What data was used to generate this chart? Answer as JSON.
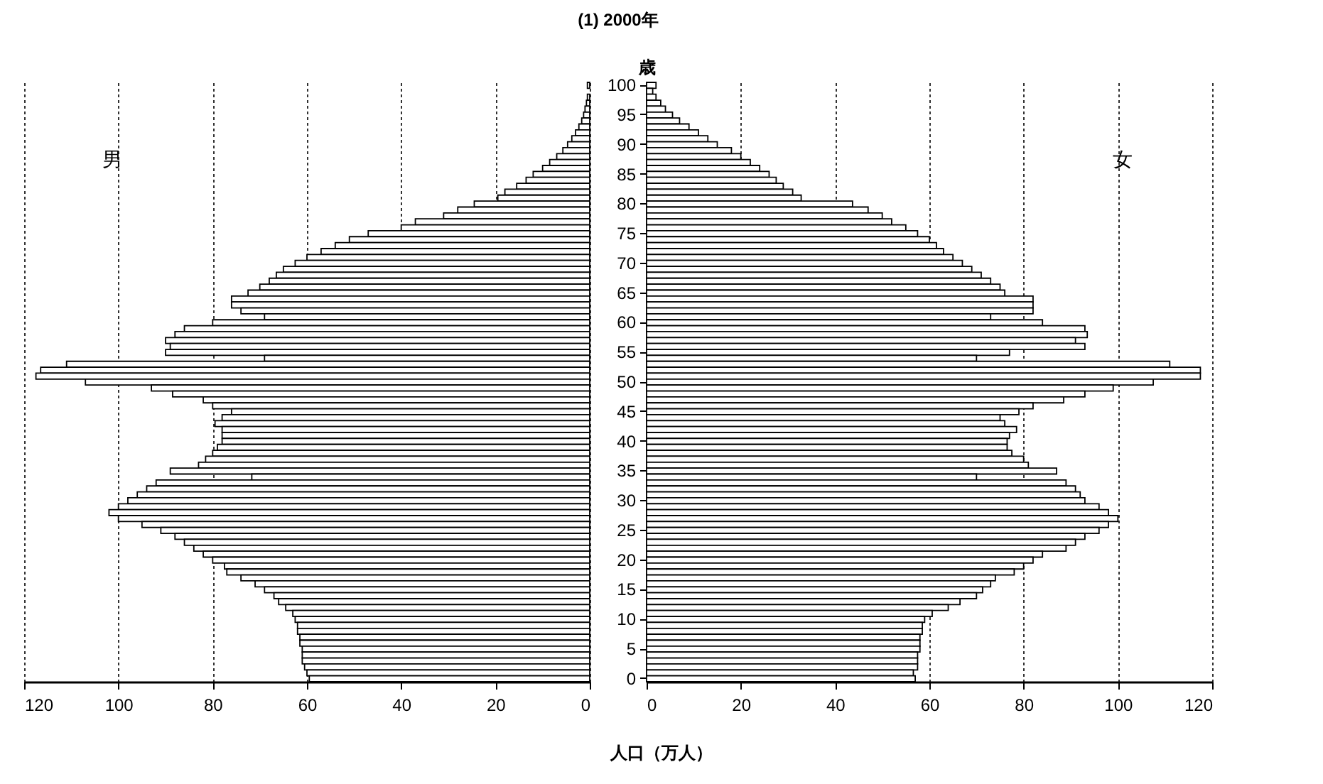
{
  "chart_data": [
    {
      "type": "bar",
      "orientation": "horizontal",
      "xlabel": "人口（万人）",
      "xlim": [
        120,
        0
      ],
      "xticks": [
        120,
        100,
        80,
        60,
        40,
        20,
        0
      ],
      "grid": "x",
      "tick_labels": "x",
      "categories": [
        "100",
        null,
        null,
        null,
        null,
        "95",
        null,
        null,
        null,
        null,
        "90",
        null,
        null,
        null,
        null,
        "85",
        null,
        null,
        null,
        null,
        "80",
        null,
        null,
        null,
        null,
        "75",
        null,
        null,
        null,
        null,
        "70",
        null,
        null,
        null,
        null,
        "65",
        null,
        null,
        null,
        null,
        "60",
        null,
        null,
        null,
        null,
        "55",
        null,
        null,
        null,
        null,
        "50",
        null,
        null,
        null,
        null,
        "45",
        null,
        null,
        null,
        null,
        "40",
        null,
        null,
        null,
        null,
        "35",
        null,
        null,
        null,
        null,
        "30",
        null,
        null,
        null,
        null,
        "25",
        null,
        null,
        null,
        null,
        "20",
        null,
        null,
        null,
        null,
        "15",
        null,
        null,
        null,
        null,
        "10",
        null,
        null,
        null,
        null,
        "5",
        null,
        null,
        null,
        null,
        "0"
      ],
      "series": [
        {
          "name": "男",
          "color": "#000000",
          "values": [
            0.5,
            null,
            0.5,
            0.7,
            1,
            1.3,
            1.7,
            2.3,
            3,
            3.8,
            4.7,
            5.7,
            7,
            8.5,
            10,
            12,
            13.5,
            15.5,
            18,
            19.5,
            24.5,
            28,
            31,
            37,
            40,
            47,
            51,
            54,
            57,
            60,
            62.5,
            65,
            66.5,
            68,
            70,
            72.5,
            76,
            76,
            74,
            69,
            80,
            86,
            88,
            90,
            89,
            90,
            69,
            111,
            116.5,
            117.5,
            107,
            93,
            88.5,
            82,
            80,
            76,
            78,
            79.5,
            78,
            78,
            78,
            79,
            80,
            81.5,
            83,
            89,
            71.7,
            92,
            94,
            96,
            98,
            100,
            102,
            100,
            95,
            91,
            88,
            86,
            84,
            82,
            80,
            77.5,
            77,
            74,
            71,
            69,
            67,
            66,
            64.5,
            63,
            62.5,
            62,
            62,
            61.5,
            61.5,
            61,
            61,
            61,
            60.5,
            60,
            59.5
          ]
        }
      ]
    },
    {
      "type": "bar",
      "orientation": "horizontal",
      "title": "(1) 2000年",
      "ylabel": "歳",
      "xlim": [
        0,
        120
      ],
      "xticks": [
        0,
        20,
        40,
        60,
        80,
        100,
        120
      ],
      "grid": "x",
      "categories": [
        "100",
        null,
        null,
        null,
        null,
        "95",
        null,
        null,
        null,
        null,
        "90",
        null,
        null,
        null,
        null,
        "85",
        null,
        null,
        null,
        null,
        "80",
        null,
        null,
        null,
        null,
        "75",
        null,
        null,
        null,
        null,
        "70",
        null,
        null,
        null,
        null,
        "65",
        null,
        null,
        null,
        null,
        "60",
        null,
        null,
        null,
        null,
        "55",
        null,
        null,
        null,
        null,
        "50",
        null,
        null,
        null,
        null,
        "45",
        null,
        null,
        null,
        null,
        "40",
        null,
        null,
        null,
        null,
        "35",
        null,
        null,
        null,
        null,
        "30",
        null,
        null,
        null,
        null,
        "25",
        null,
        null,
        null,
        null,
        "20",
        null,
        null,
        null,
        null,
        "15",
        null,
        null,
        null,
        null,
        "10",
        null,
        null,
        null,
        null,
        "5",
        null,
        null,
        null,
        null,
        "0"
      ],
      "series": [
        {
          "name": "女",
          "color": "#000000",
          "values": [
            2,
            1.3,
            2,
            3,
            4,
            5.5,
            7,
            9,
            11,
            13,
            15,
            18,
            20,
            22,
            24,
            26,
            27.5,
            29,
            31,
            32.8,
            43.7,
            47,
            50,
            52,
            55,
            57.5,
            60,
            61.5,
            63,
            65,
            67,
            69,
            71,
            73,
            75,
            76,
            82,
            82,
            82,
            73,
            84,
            93,
            93.5,
            91,
            93,
            77,
            70,
            111,
            117.5,
            117.5,
            107.5,
            99,
            93,
            88.5,
            82,
            79,
            75,
            76,
            78.5,
            77,
            76.5,
            76.5,
            77.5,
            80,
            81,
            87,
            70,
            89,
            91,
            92,
            93,
            96,
            98,
            100,
            98,
            96,
            93,
            91,
            89,
            84,
            82,
            80,
            78,
            74,
            73,
            71.3,
            70,
            66.5,
            64,
            60.6,
            59,
            58.5,
            58.5,
            58,
            58,
            58,
            57.5,
            57.5,
            57.5,
            56.6,
            57
          ]
        }
      ]
    }
  ]
}
